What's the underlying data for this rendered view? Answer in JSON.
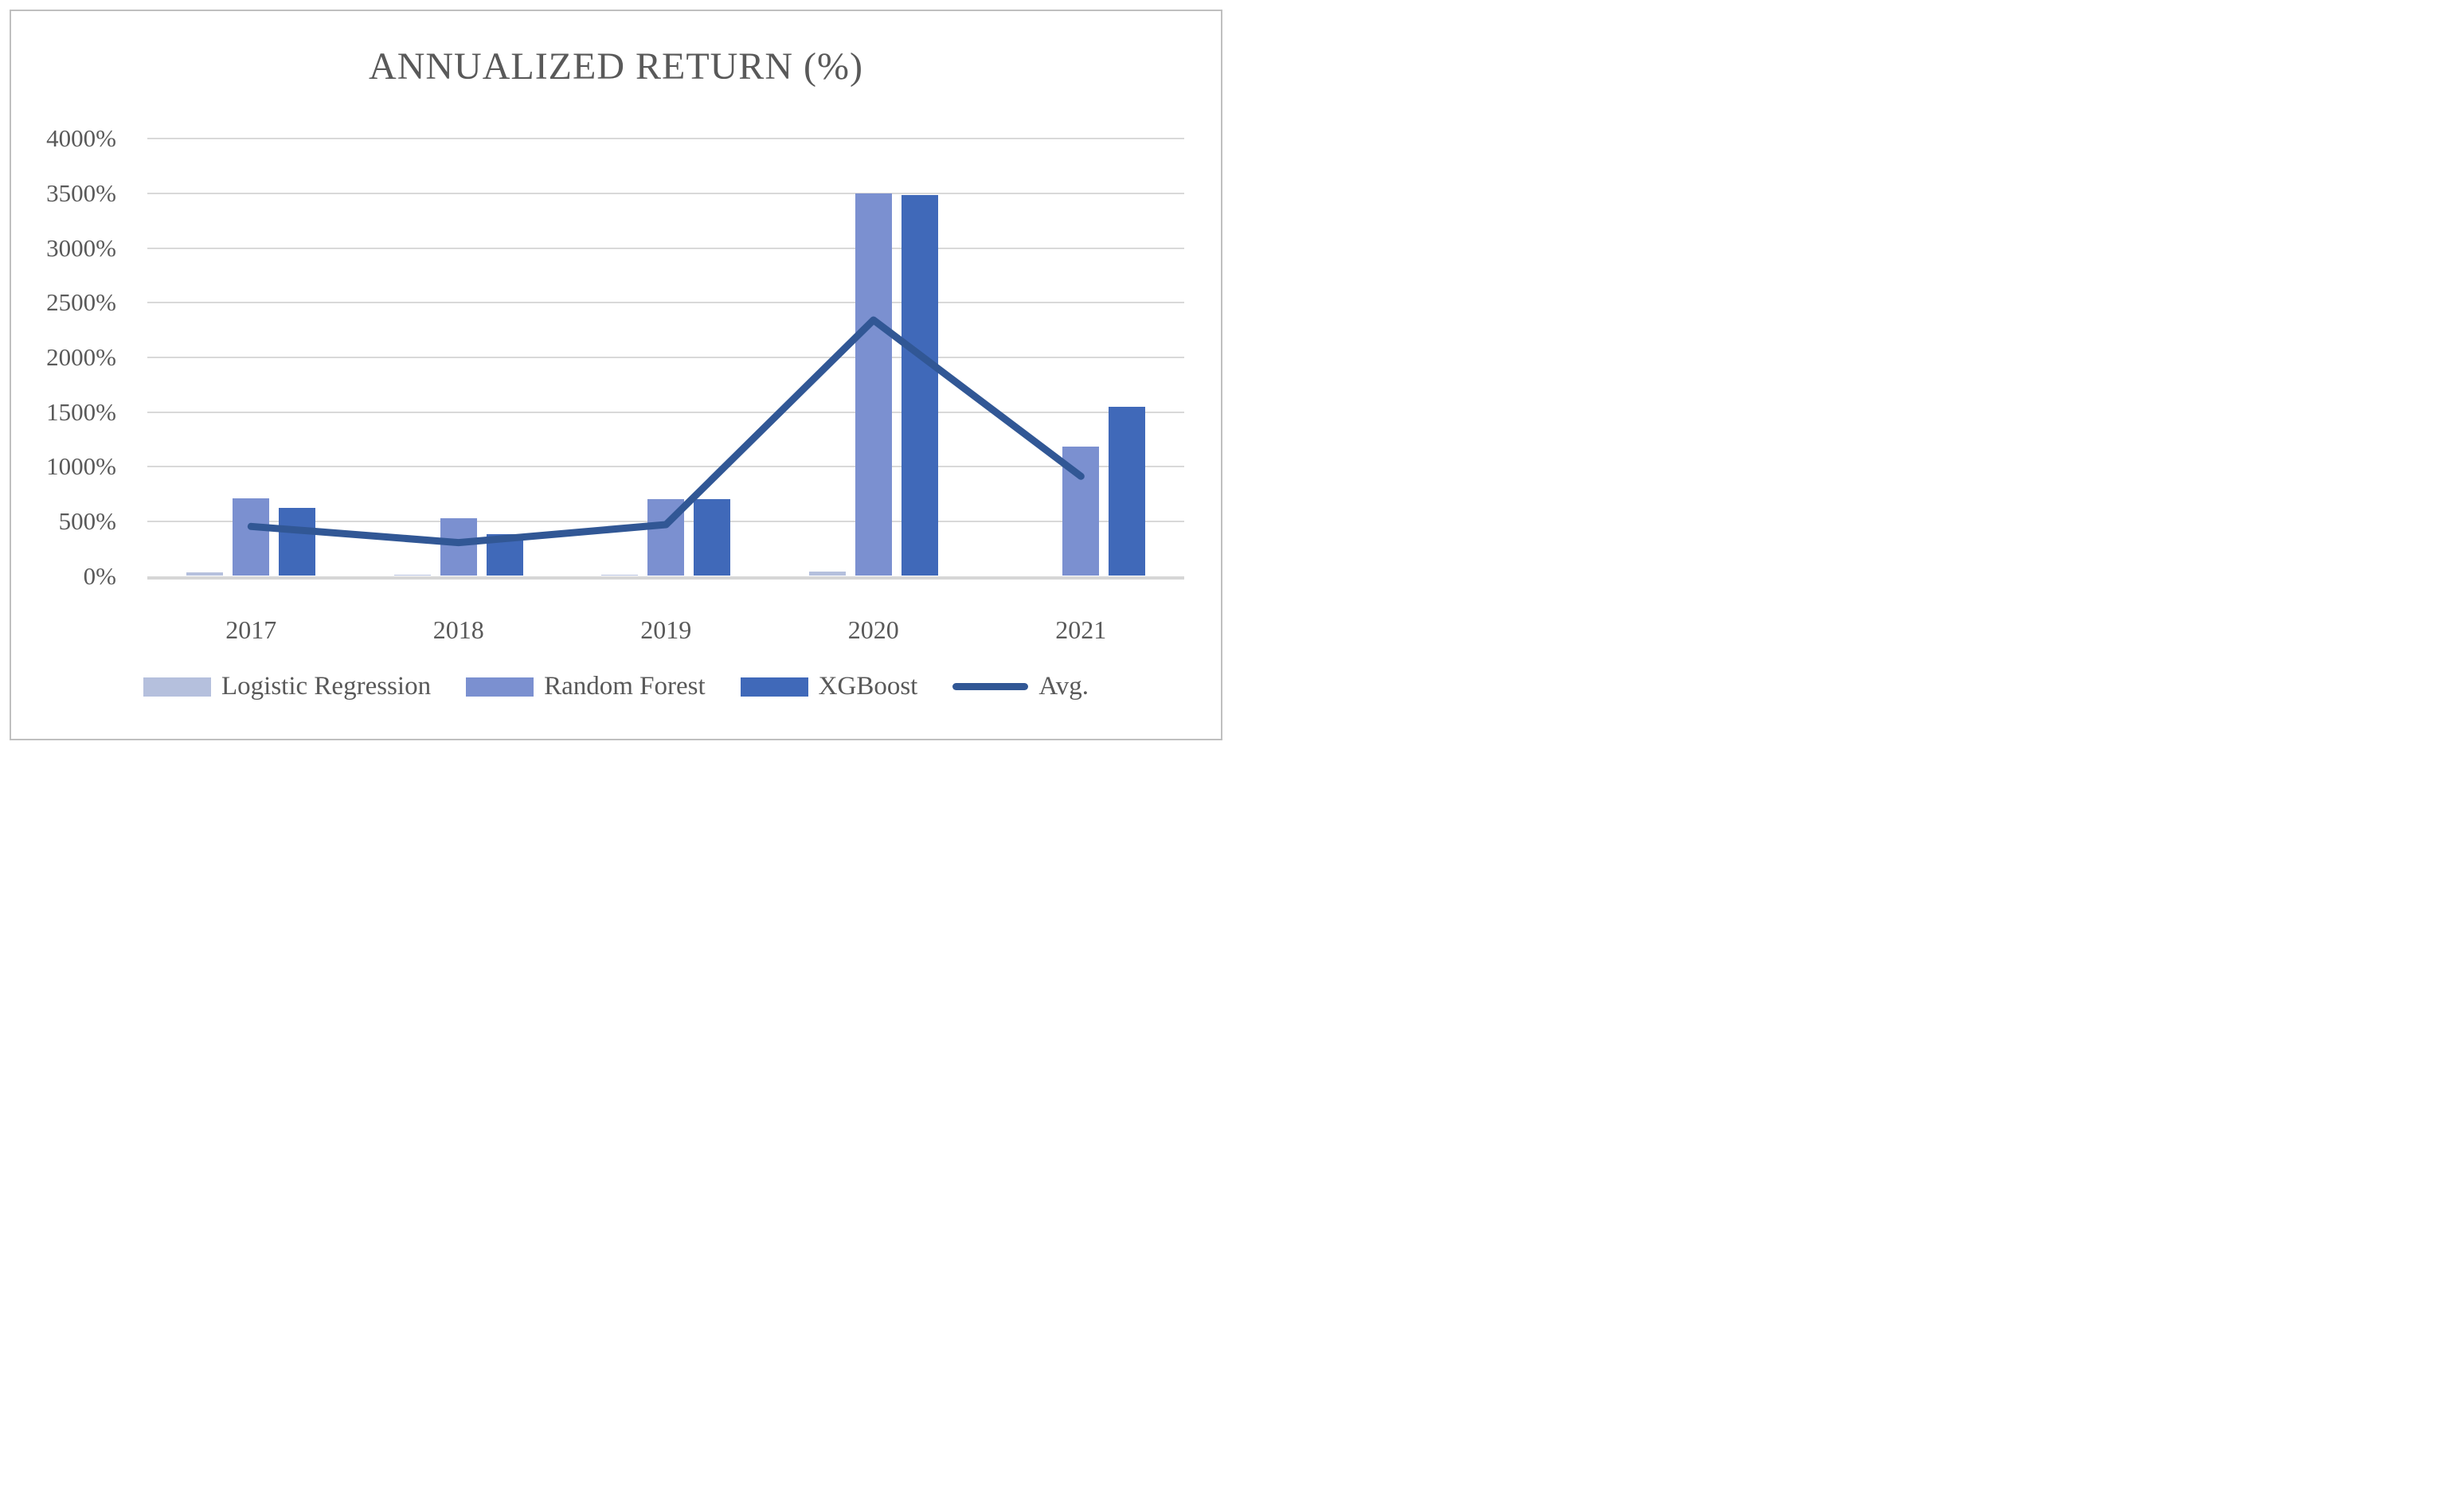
{
  "chart_data": {
    "type": "bar",
    "subtype": "grouped bars with average line overlay",
    "title": "ANNUALIZED RETURN (%)",
    "categories": [
      "2017",
      "2018",
      "2019",
      "2020",
      "2021"
    ],
    "series": [
      {
        "name": "Logistic Regression",
        "type": "bar",
        "color": "#b5c0dd",
        "values": [
          30,
          10,
          10,
          40,
          0
        ]
      },
      {
        "name": "Random Forest",
        "type": "bar",
        "color": "#7b90d0",
        "values": [
          710,
          525,
          700,
          3500,
          1185
        ]
      },
      {
        "name": "XGBoost",
        "type": "bar",
        "color": "#4069b9",
        "values": [
          620,
          380,
          700,
          3485,
          1550
        ]
      },
      {
        "name": "Avg.",
        "type": "line",
        "color": "#315795",
        "values": [
          453.3,
          305.0,
          470.0,
          2341.7,
          911.7
        ]
      }
    ],
    "y_axis": {
      "min": 0,
      "max": 4000,
      "step": 500,
      "tick_suffix": "%",
      "tick_labels": [
        "4000%",
        "3500%",
        "3000%",
        "2500%",
        "2000%",
        "1500%",
        "1000%",
        "500%",
        "0%"
      ]
    },
    "grid": true,
    "legend_position": "bottom"
  },
  "colors": {
    "text": "#595959",
    "gridline": "#d9d9d9",
    "axis_line": "#d6d6d6",
    "frame_border": "#bfbfbf",
    "background": "#ffffff"
  }
}
